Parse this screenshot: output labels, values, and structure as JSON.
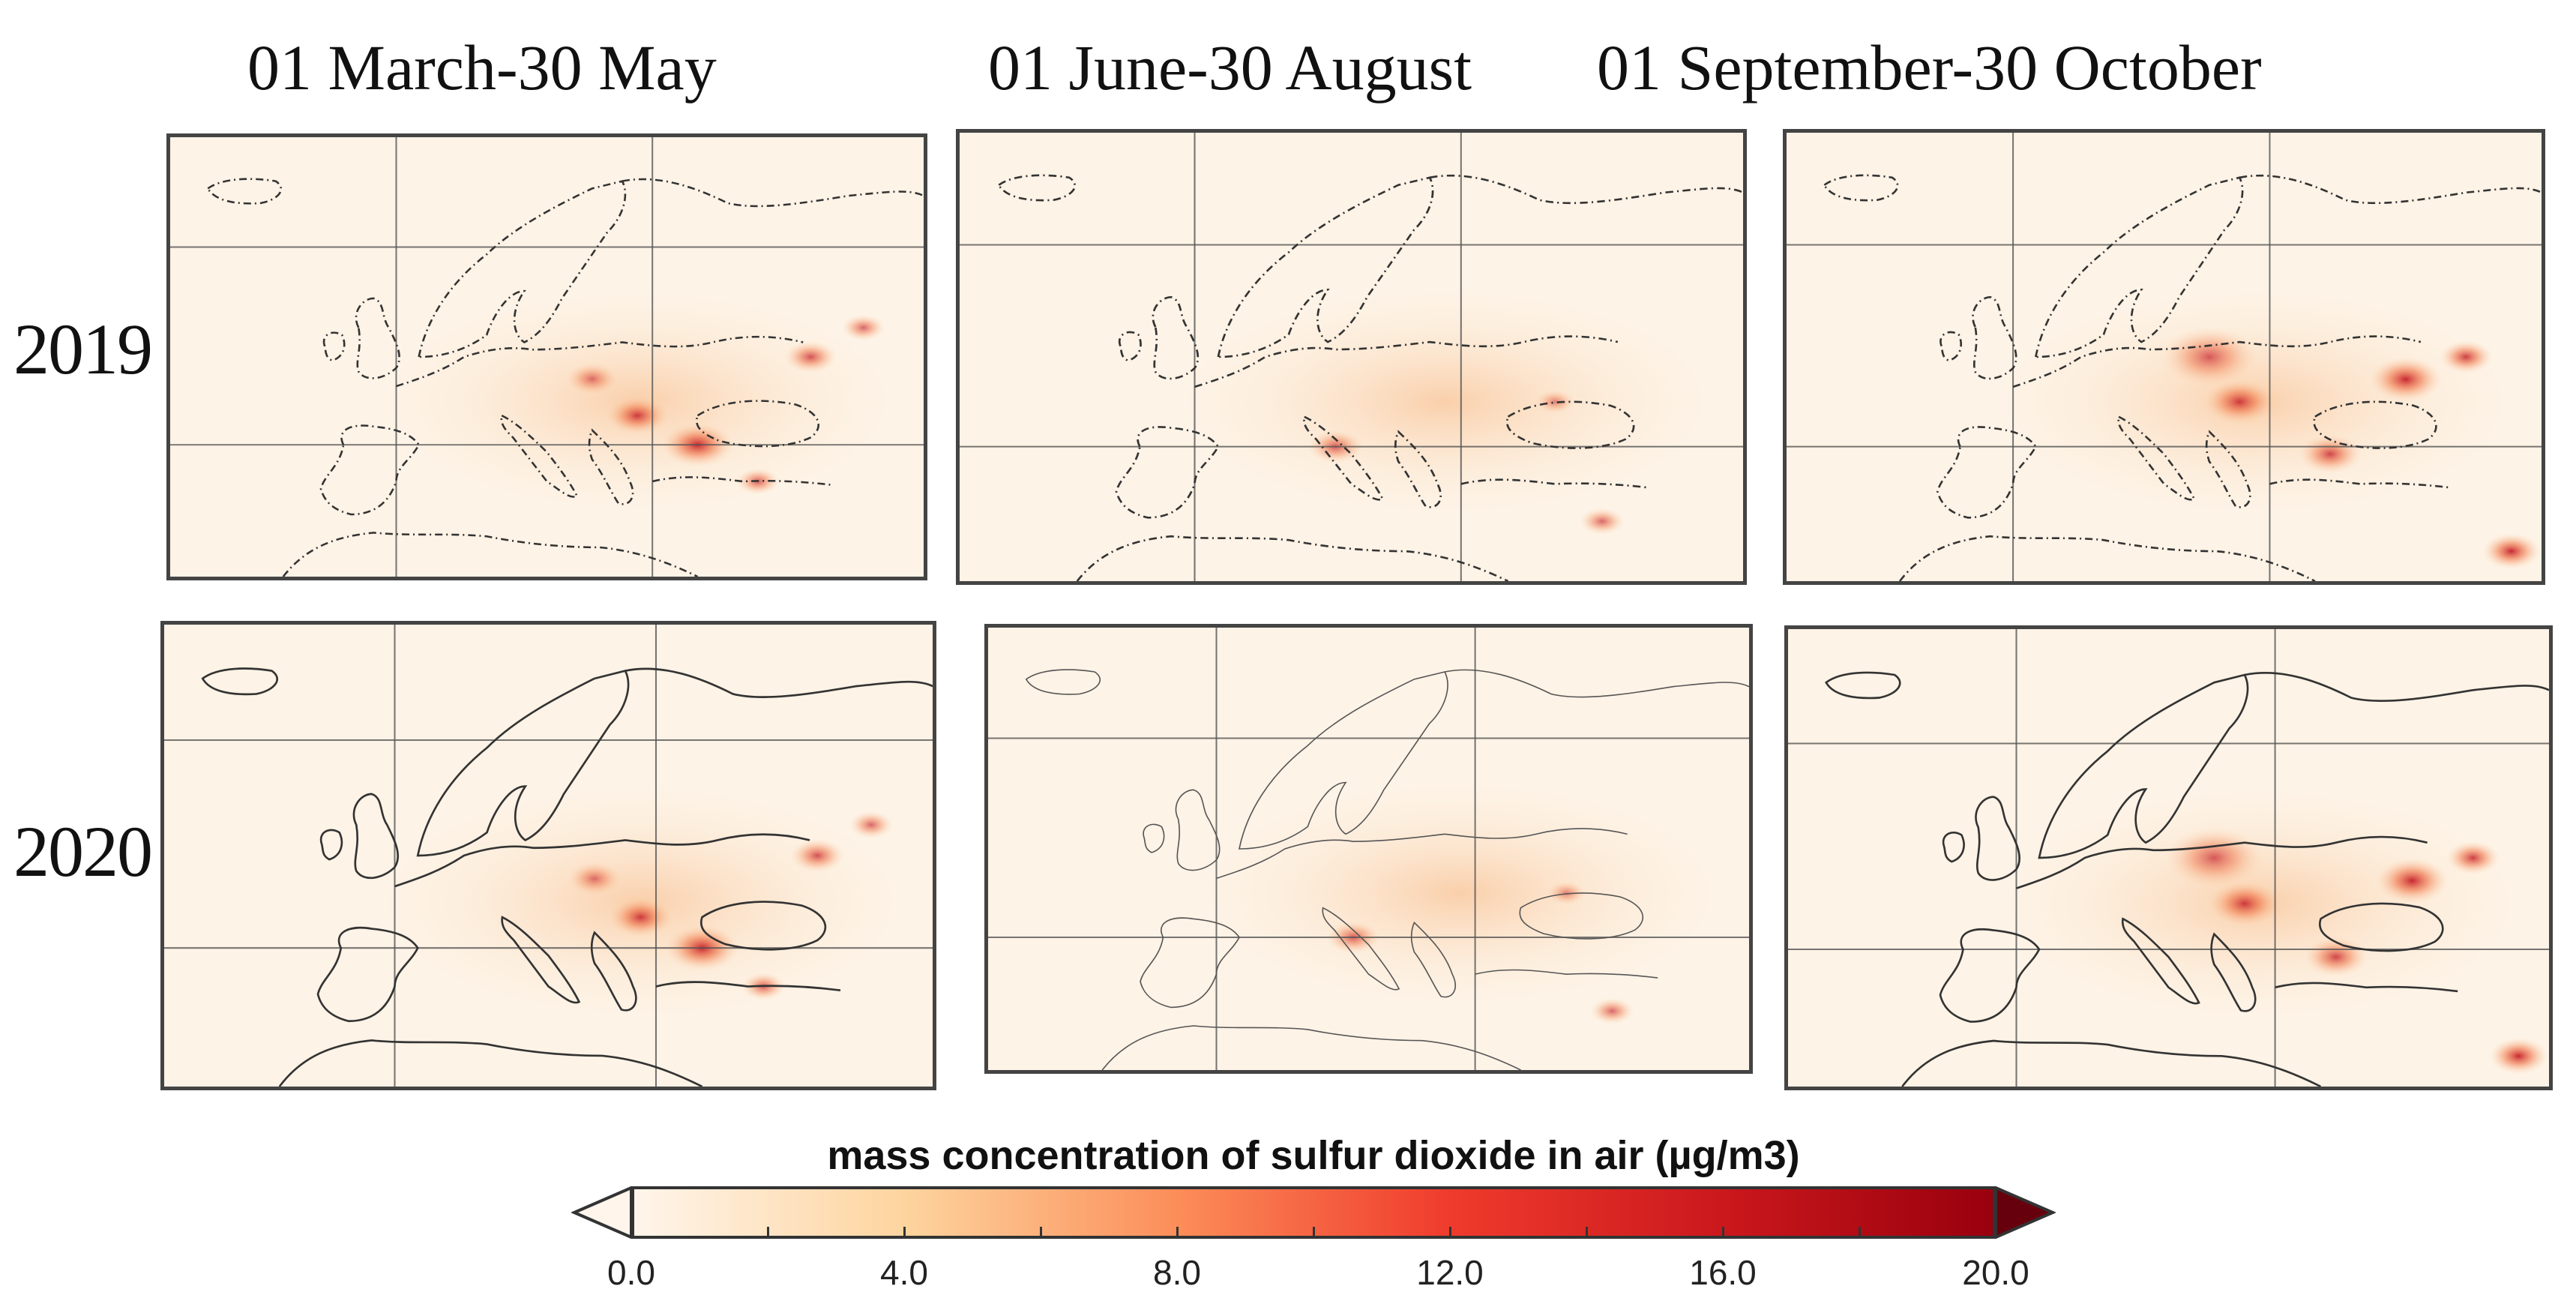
{
  "columns": [
    "01 March-30 May",
    "01 June-30 August",
    "01 September-30 October"
  ],
  "rows": [
    "2019",
    "2020"
  ],
  "colorbar": {
    "label": "mass concentration of sulfur dioxide in air (µg/m3)",
    "ticks": [
      "0.0",
      "4.0",
      "8.0",
      "12.0",
      "16.0",
      "20.0"
    ],
    "min": 0,
    "max": 20,
    "extend": "both",
    "colors": [
      "#fff5eb",
      "#fdd49e",
      "#fc8d59",
      "#ef3b2c",
      "#cb181d",
      "#99000d",
      "#67000d"
    ]
  },
  "maps": [
    {
      "row": "2019",
      "column": "01 March-30 May"
    },
    {
      "row": "2019",
      "column": "01 June-30 August"
    },
    {
      "row": "2019",
      "column": "01 September-30 October"
    },
    {
      "row": "2020",
      "column": "01 March-30 May"
    },
    {
      "row": "2020",
      "column": "01 June-30 August"
    },
    {
      "row": "2020",
      "column": "01 September-30 October"
    }
  ]
}
